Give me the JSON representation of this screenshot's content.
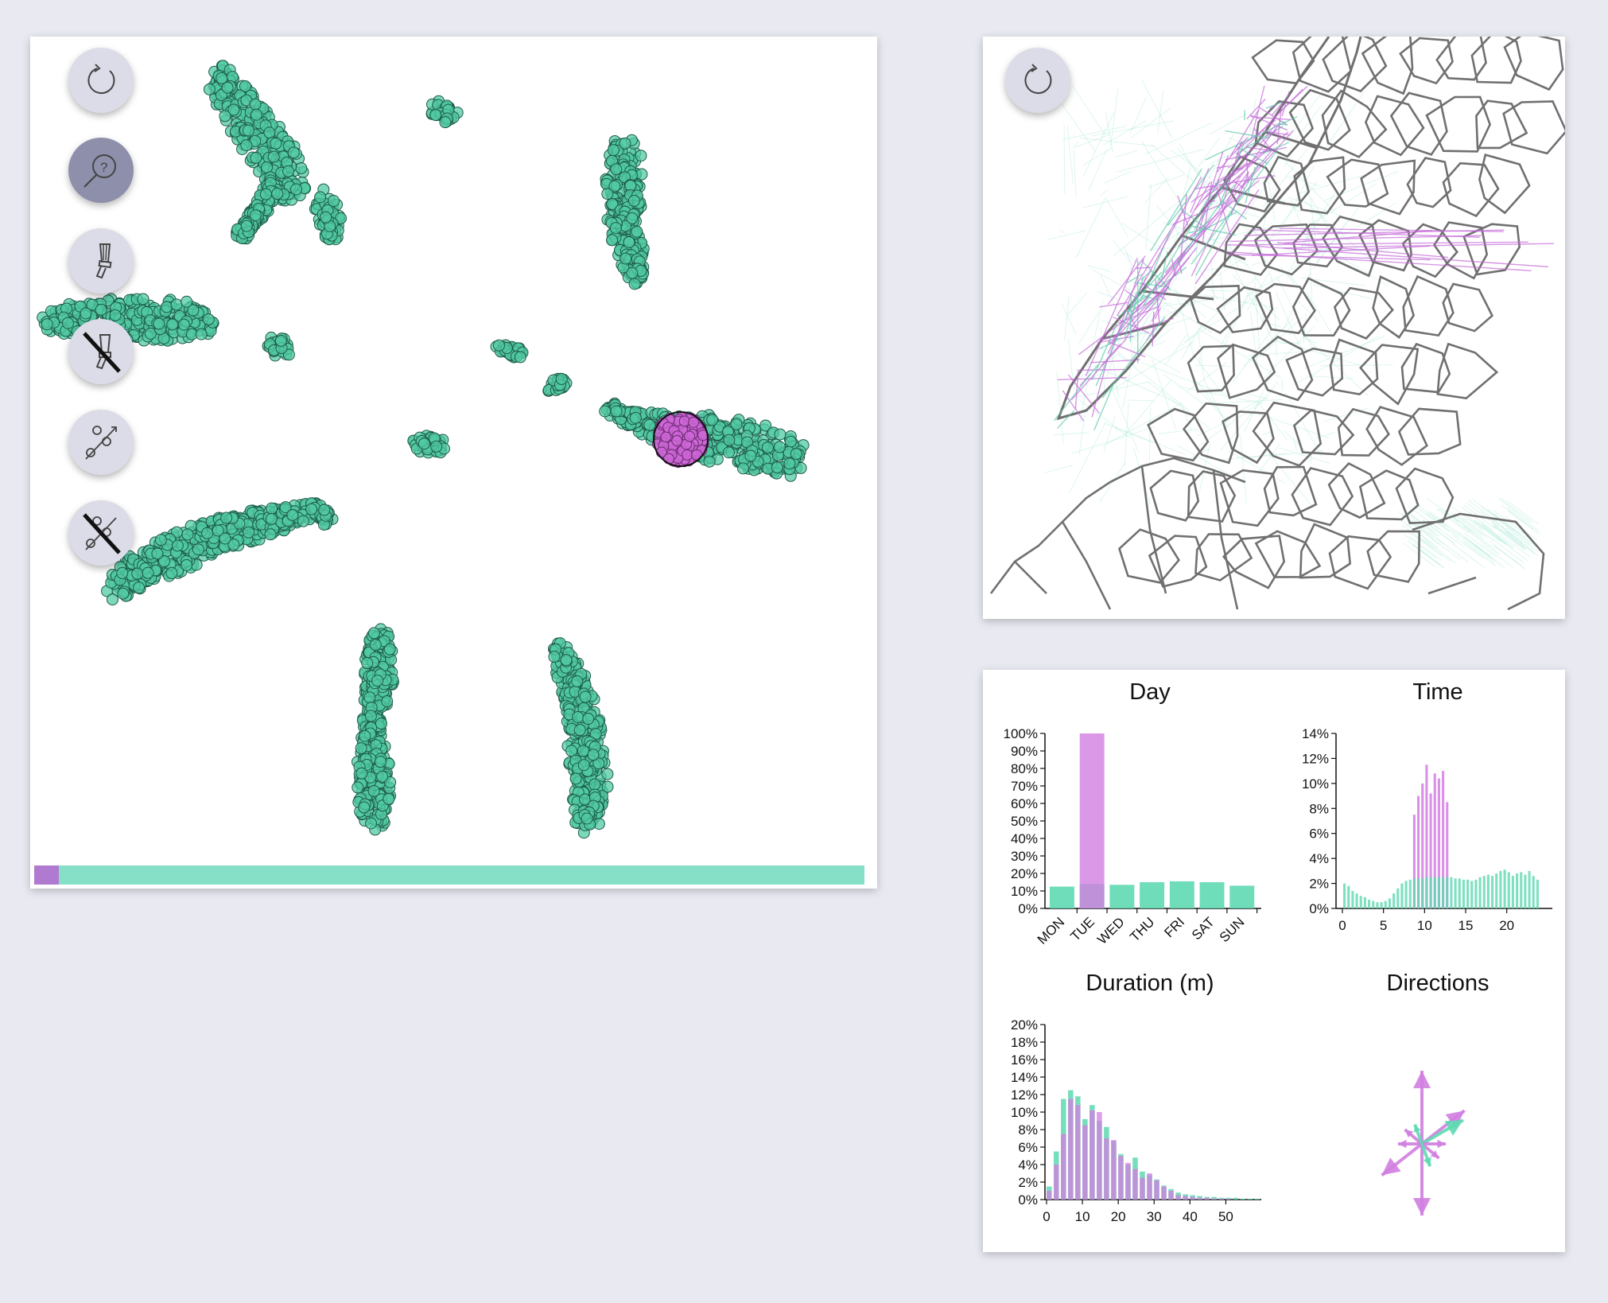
{
  "toolbar": {
    "reset_icon": "reset-icon",
    "lasso_icon": "lasso-help-icon",
    "brush_icon": "brush-icon",
    "brush_off_icon": "brush-off-icon",
    "link_icon": "link-icon",
    "link_off_icon": "link-off-icon",
    "active_tool": "lasso"
  },
  "selection": {
    "fraction_selected": 0.03,
    "selected_color": "#b07ad0",
    "unselected_color": "#86e0c8"
  },
  "colors": {
    "point": "#52c9a3",
    "selected_point": "#cc66d6",
    "map_line": "#707070",
    "trip_selected": "#c46ad8",
    "trip_all": "#9fe6d2"
  },
  "stats": {
    "day": {
      "title": "Day",
      "chart_data": {
        "type": "bar",
        "categories": [
          "MON",
          "TUE",
          "WED",
          "THU",
          "FRI",
          "SAT",
          "SUN"
        ],
        "series": [
          {
            "values": [
              12.5,
              14.0,
              13.5,
              15.0,
              15.5,
              15.0,
              13.0
            ]
          },
          {
            "values": [
              0,
              100,
              0,
              0,
              0,
              0,
              0
            ]
          }
        ],
        "yticks": [
          "0%",
          "10%",
          "20%",
          "30%",
          "40%",
          "50%",
          "60%",
          "70%",
          "80%",
          "90%",
          "100%"
        ],
        "ylim": [
          0,
          100
        ]
      }
    },
    "time": {
      "title": "Time",
      "chart_data": {
        "type": "bar",
        "x": [
          0.25,
          0.75,
          1.25,
          1.75,
          2.25,
          2.75,
          3.25,
          3.75,
          4.25,
          4.75,
          5.25,
          5.75,
          6.25,
          6.75,
          7.25,
          7.75,
          8.25,
          8.75,
          9.25,
          9.75,
          10.25,
          10.75,
          11.25,
          11.75,
          12.25,
          12.75,
          13.25,
          13.75,
          14.25,
          14.75,
          15.25,
          15.75,
          16.25,
          16.75,
          17.25,
          17.75,
          18.25,
          18.75,
          19.25,
          19.75,
          20.25,
          20.75,
          21.25,
          21.75,
          22.25,
          22.75,
          23.25,
          23.75
        ],
        "series": [
          {
            "values": [
              2.0,
              1.8,
              1.4,
              1.2,
              1.0,
              0.9,
              0.7,
              0.6,
              0.5,
              0.5,
              0.6,
              0.8,
              1.2,
              1.6,
              2.0,
              2.2,
              2.3,
              2.4,
              2.4,
              2.4,
              2.5,
              2.5,
              2.5,
              2.5,
              2.5,
              2.5,
              2.5,
              2.4,
              2.4,
              2.3,
              2.3,
              2.2,
              2.3,
              2.5,
              2.6,
              2.7,
              2.6,
              2.8,
              3.0,
              3.1,
              2.9,
              2.6,
              2.8,
              2.9,
              2.7,
              3.0,
              2.6,
              2.3
            ]
          },
          {
            "values": [
              0,
              0,
              0,
              0,
              0,
              0,
              0,
              0,
              0,
              0,
              0,
              0,
              0,
              0,
              0,
              0,
              0,
              7.5,
              9.0,
              10.0,
              11.5,
              9.2,
              10.8,
              10.4,
              11.0,
              8.5,
              0,
              0,
              0,
              0,
              0,
              0,
              0,
              0,
              0,
              0,
              0,
              0,
              0,
              0,
              0,
              0,
              0,
              0,
              0,
              0,
              0,
              0
            ]
          }
        ],
        "xticks": [
          "0",
          "5",
          "10",
          "15",
          "20"
        ],
        "yticks": [
          "0%",
          "2%",
          "4%",
          "6%",
          "8%",
          "10%",
          "12%",
          "14%"
        ],
        "xlim": [
          0,
          24
        ],
        "ylim": [
          0,
          14
        ]
      }
    },
    "duration": {
      "title": "Duration (m)",
      "chart_data": {
        "type": "bar",
        "x": [
          1,
          3,
          5,
          7,
          9,
          11,
          13,
          15,
          17,
          19,
          21,
          23,
          25,
          27,
          29,
          31,
          33,
          35,
          37,
          39,
          41,
          43,
          45,
          47,
          49,
          51,
          53,
          55,
          57,
          59
        ],
        "series": [
          {
            "values": [
              1.5,
              5.5,
              11.5,
              12.5,
              11.8,
              9.2,
              10.8,
              9.0,
              8.3,
              6.7,
              5.2,
              4.0,
              4.8,
              3.2,
              2.8,
              2.3,
              1.6,
              1.2,
              0.8,
              0.6,
              0.5,
              0.4,
              0.3,
              0.3,
              0.2,
              0.2,
              0.2,
              0.1,
              0.1,
              0.1
            ]
          },
          {
            "values": [
              1.0,
              4.0,
              7.5,
              11.5,
              10.8,
              8.5,
              10.2,
              10.0,
              7.0,
              6.8,
              5.0,
              4.2,
              3.5,
              2.5,
              3.0,
              2.2,
              1.5,
              1.0,
              0.5,
              0.4,
              0.3,
              0.2,
              0.2,
              0.1,
              0.1,
              0.1,
              0,
              0,
              0,
              0
            ]
          }
        ],
        "xticks": [
          "0",
          "10",
          "20",
          "30",
          "40",
          "50"
        ],
        "yticks": [
          "0%",
          "2%",
          "4%",
          "6%",
          "8%",
          "10%",
          "12%",
          "14%",
          "16%",
          "18%",
          "20%"
        ],
        "xlim": [
          0,
          60
        ],
        "ylim": [
          0,
          20
        ]
      }
    },
    "directions": {
      "title": "Directions"
    }
  }
}
